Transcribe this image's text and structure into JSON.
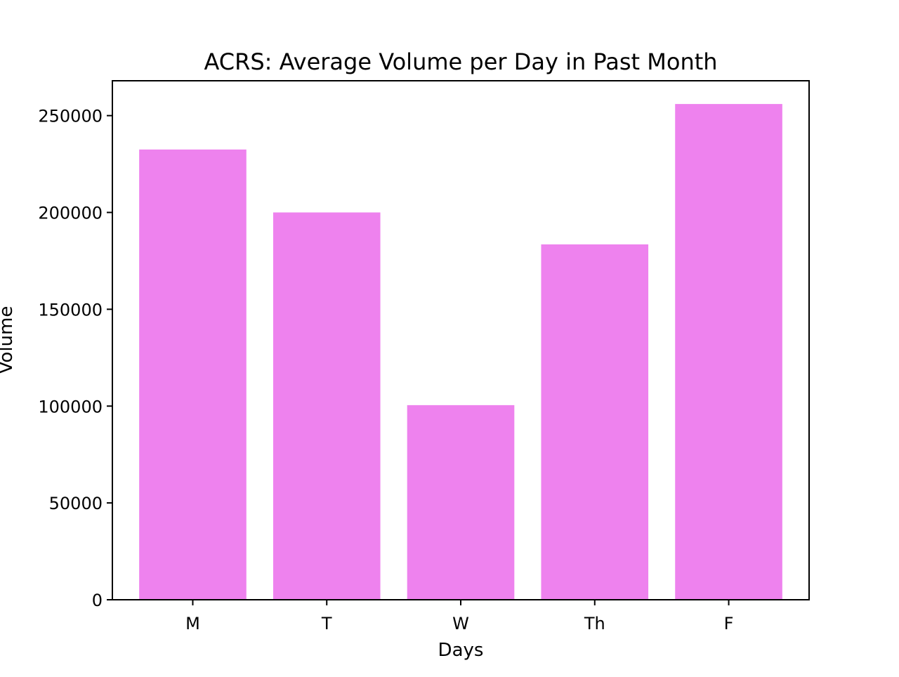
{
  "chart_data": {
    "type": "bar",
    "title": "ACRS: Average Volume per Day in Past Month",
    "xlabel": "Days",
    "ylabel": "Volume",
    "categories": [
      "M",
      "T",
      "W",
      "Th",
      "F"
    ],
    "values": [
      232500,
      200000,
      100500,
      183500,
      256000
    ],
    "ylim": [
      0,
      268000
    ],
    "yticks": [
      0,
      50000,
      100000,
      150000,
      200000,
      250000
    ],
    "ytick_labels": [
      "0",
      "50000",
      "100000",
      "150000",
      "200000",
      "250000"
    ],
    "bar_color": "#ee82ee",
    "grid": false,
    "legend": false
  }
}
